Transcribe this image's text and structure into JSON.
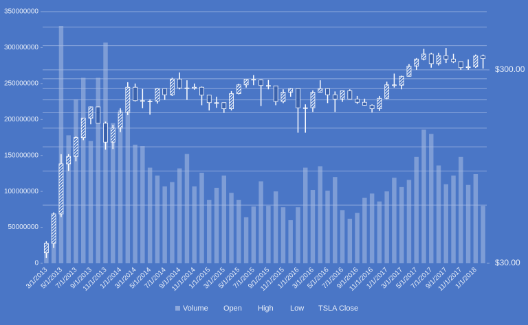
{
  "chart_data": {
    "type": "stock",
    "categories": [
      "3/1/2013",
      null,
      "5/1/2013",
      null,
      "7/1/2013",
      null,
      "9/1/2013",
      null,
      "11/1/2013",
      null,
      "1/1/2014",
      null,
      "3/1/2014",
      null,
      "5/1/2014",
      null,
      "7/1/2014",
      null,
      "9/1/2014",
      null,
      "11/1/2014",
      null,
      "1/1/2015",
      null,
      "3/1/2015",
      null,
      "5/1/2015",
      null,
      "7/1/2015",
      null,
      "9/1/2015",
      null,
      "11/1/2015",
      null,
      "1/1/2016",
      null,
      "3/1/2016",
      null,
      "5/1/2016",
      null,
      "7/1/2016",
      null,
      "9/1/2016",
      null,
      "11/1/2016",
      null,
      "1/1/2017",
      null,
      "3/1/2017",
      null,
      "5/1/2017",
      null,
      "7/1/2017",
      null,
      "9/1/2017",
      null,
      "11/1/2017",
      null,
      "1/1/2018",
      null
    ],
    "series": [
      {
        "name": "Volume",
        "color": "#a9bde4",
        "axis": "y",
        "values": [
          15000000,
          50000000,
          330000000,
          178000000,
          228000000,
          258000000,
          170000000,
          258000000,
          307000000,
          195000000,
          213000000,
          210000000,
          165000000,
          163000000,
          133000000,
          122000000,
          107000000,
          113000000,
          132000000,
          152000000,
          107000000,
          126000000,
          88000000,
          105000000,
          122000000,
          98000000,
          88000000,
          64000000,
          79000000,
          114000000,
          80000000,
          100000000,
          78000000,
          60000000,
          78000000,
          133000000,
          102000000,
          135000000,
          101000000,
          120000000,
          74000000,
          62000000,
          70000000,
          91000000,
          97000000,
          86000000,
          100000000,
          119000000,
          106000000,
          116000000,
          148000000,
          186000000,
          180000000,
          136000000,
          110000000,
          122000000,
          148000000,
          109000000,
          124000000,
          80000000
        ]
      },
      {
        "name": "Open",
        "axis": "y2",
        "values": [
          34,
          38,
          54,
          98,
          107,
          134,
          169,
          193,
          159,
          127,
          150,
          181,
          244,
          208,
          207,
          207,
          240,
          223,
          269,
          242,
          241,
          244,
          222,
          203,
          203,
          189,
          226,
          251,
          268,
          266,
          249,
          248,
          206,
          230,
          240,
          191,
          191,
          230,
          240,
          223,
          212,
          234,
          212,
          204,
          197,
          189,
          214,
          251,
          250,
          278,
          314,
          341,
          362,
          323,
          355,
          341,
          331,
          308,
          311,
          354
        ]
      },
      {
        "name": "High",
        "axis": "y2",
        "values": [
          39,
          55,
          110,
          110,
          136,
          169,
          194,
          194,
          162,
          156,
          190,
          259,
          255,
          239,
          211,
          242,
          240,
          273,
          291,
          265,
          255,
          246,
          222,
          218,
          203,
          233,
          254,
          269,
          282,
          268,
          266,
          248,
          238,
          241,
          240,
          199,
          235,
          265,
          241,
          232,
          235,
          238,
          220,
          213,
          199,
          220,
          261,
          287,
          280,
          322,
          345,
          386,
          368,
          368,
          389,
          363,
          332,
          340,
          360,
          360
        ]
      },
      {
        "name": "Low",
        "axis": "y2",
        "values": [
          32,
          36,
          52,
          90,
          101,
          130,
          157,
          159,
          116,
          117,
          143,
          175,
          206,
          190,
          176,
          201,
          210,
          220,
          238,
          210,
          237,
          197,
          185,
          191,
          180,
          185,
          224,
          243,
          250,
          195,
          238,
          197,
          202,
          218,
          142,
          142,
          182,
          230,
          202,
          182,
          205,
          211,
          200,
          196,
          181,
          184,
          212,
          243,
          238,
          277,
          300,
          336,
          308,
          316,
          325,
          325,
          300,
          300,
          307,
          305
        ]
      },
      {
        "name": "TSLA Close",
        "axis": "y2",
        "values": [
          38,
          54,
          98,
          107,
          134,
          169,
          193,
          159,
          127,
          150,
          181,
          244,
          208,
          207,
          207,
          240,
          223,
          269,
          242,
          241,
          244,
          222,
          203,
          203,
          189,
          226,
          251,
          268,
          266,
          249,
          248,
          206,
          230,
          240,
          191,
          191,
          230,
          240,
          223,
          212,
          234,
          212,
          204,
          197,
          189,
          214,
          251,
          250,
          278,
          314,
          341,
          362,
          323,
          355,
          341,
          331,
          308,
          311,
          354,
          343
        ]
      }
    ],
    "ylim": [
      0,
      350000000
    ],
    "yticks": [
      0,
      50000000,
      100000000,
      150000000,
      200000000,
      250000000,
      300000000,
      350000000
    ],
    "y2lim": [
      30,
      600
    ],
    "y2log": true,
    "y2ticks": [
      {
        "value": 30,
        "label": "$30.00"
      },
      {
        "value": 300,
        "label": "$300.00"
      }
    ],
    "y2grid": [
      60,
      90,
      120,
      150,
      180,
      210,
      240,
      270,
      300,
      400,
      500,
      600
    ]
  }
}
